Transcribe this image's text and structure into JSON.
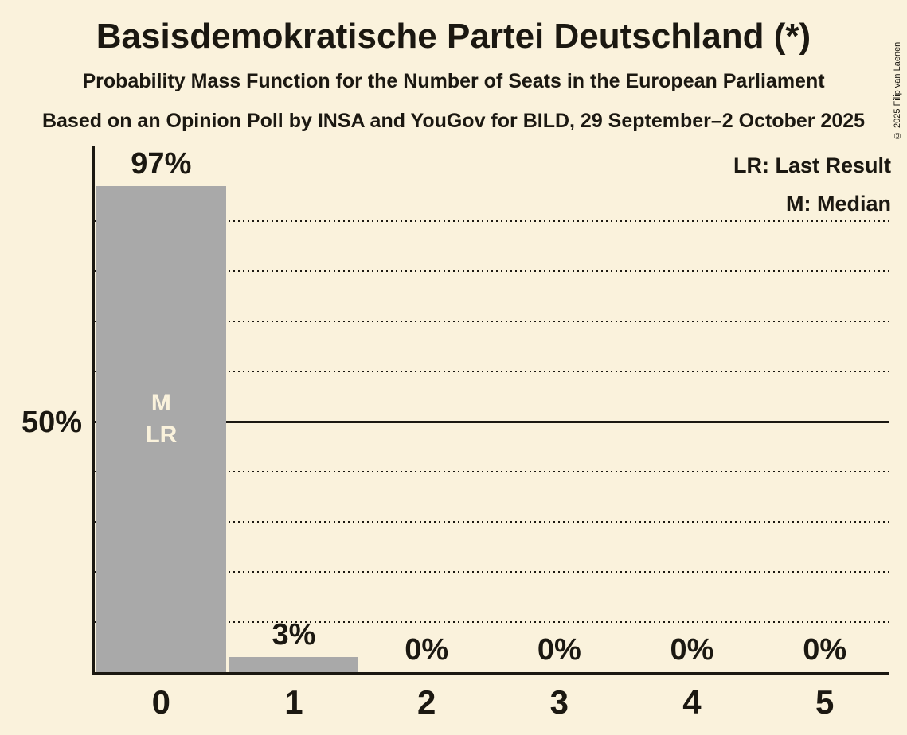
{
  "title": "Basisdemokratische Partei Deutschland (*)",
  "subtitle": "Probability Mass Function for the Number of Seats in the European Parliament",
  "source_line": "Based on an Opinion Poll by INSA and YouGov for BILD, 29 September–2 October 2025",
  "copyright": "© 2025 Filip van Laenen",
  "legend": {
    "last_result": "LR: Last Result",
    "median": "M: Median"
  },
  "chart_data": {
    "type": "bar",
    "title": "Basisdemokratische Partei Deutschland (*)",
    "categories": [
      "0",
      "1",
      "2",
      "3",
      "4",
      "5"
    ],
    "values": [
      97,
      3,
      0,
      0,
      0,
      0
    ],
    "value_labels": [
      "97%",
      "3%",
      "0%",
      "0%",
      "0%",
      "0%"
    ],
    "xlabel": "",
    "ylabel": "",
    "ylim": [
      0,
      105
    ],
    "y_tick": {
      "percent": 50,
      "label": "50%"
    },
    "gridlines": {
      "dotted_percents": [
        10,
        20,
        30,
        40,
        60,
        70,
        80,
        90
      ],
      "solid_percent": 50
    },
    "grid": "dotted horizontal, solid line at 50%",
    "legend_position": "top-right",
    "legend_entries": [
      "LR: Last Result",
      "M: Median"
    ],
    "annotations": {
      "bar_index": 0,
      "lines": [
        "M",
        "LR"
      ],
      "meaning": [
        "Median",
        "Last Result"
      ]
    }
  },
  "colors": {
    "background": "#FAF2DC",
    "bar": "#A9A9A9",
    "text": "#1B1811",
    "bar_label_text": "#FAF2DC",
    "gridline": "#1B1811"
  }
}
